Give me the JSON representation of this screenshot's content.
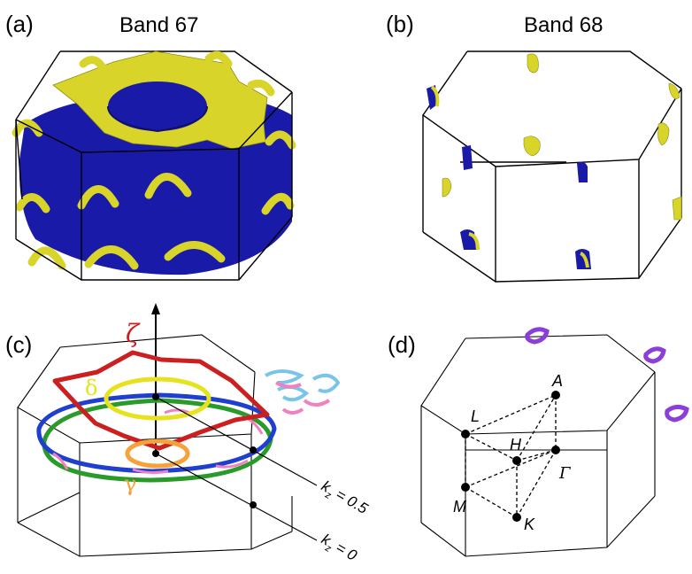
{
  "panels": {
    "a": {
      "tag": "(a)",
      "title": "Band 67"
    },
    "b": {
      "tag": "(b)",
      "title": "Band 68"
    },
    "c": {
      "tag": "(c)"
    },
    "d": {
      "tag": "(d)"
    }
  },
  "panel_c": {
    "orbit_zeta": "ζ",
    "orbit_delta": "δ",
    "orbit_gamma": "γ",
    "plane_kz_half": "k",
    "plane_kz_half_sub": "z",
    "plane_kz_half_val": " = 0.5",
    "plane_kz_zero": "k",
    "plane_kz_zero_sub": "z",
    "plane_kz_zero_val": " = 0"
  },
  "panel_d": {
    "points": [
      "A",
      "L",
      "H",
      "Γ",
      "M",
      "K"
    ]
  },
  "colors": {
    "fermi_outer": "#1a1aa8",
    "fermi_inner": "#d8d42a",
    "zeta": "#cc1f1f",
    "delta": "#e6e21e",
    "gamma": "#f5a23a",
    "blue_orbit": "#1f3fcf",
    "green_orbit": "#2a9a2a",
    "pink_orbit": "#f080c0",
    "cyan_orbit": "#7ac4ea",
    "purple_orbit": "#8c3fd8"
  }
}
